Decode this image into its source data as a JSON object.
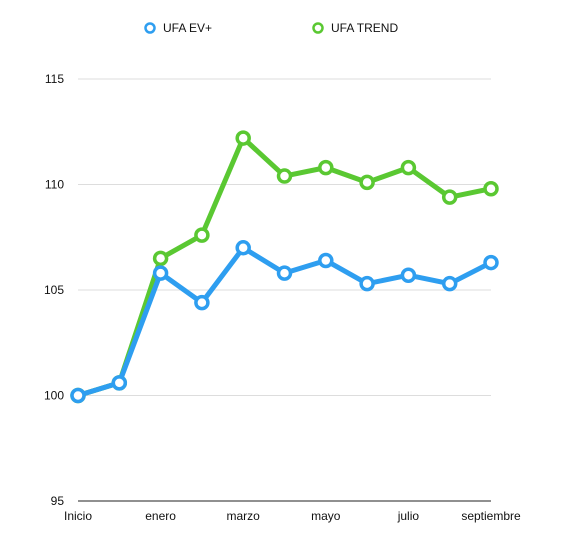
{
  "chart_data": {
    "type": "line",
    "x": [
      "Inicio",
      "",
      "enero",
      "",
      "marzo",
      "",
      "mayo",
      "",
      "julio",
      "",
      "septiembre"
    ],
    "x_tick_labels": [
      "Inicio",
      "enero",
      "marzo",
      "mayo",
      "julio",
      "septiembre"
    ],
    "y_ticks": [
      95,
      100,
      105,
      110,
      115
    ],
    "ylim": [
      95,
      115
    ],
    "grid": true,
    "legend_position": "top-center",
    "series": [
      {
        "name": "UFA EV+",
        "color": "#2e9ef0",
        "values": [
          100.0,
          100.6,
          105.8,
          104.4,
          107.0,
          105.8,
          106.4,
          105.3,
          105.7,
          105.3,
          106.3
        ]
      },
      {
        "name": "UFA TREND",
        "color": "#5ac832",
        "values": [
          100.0,
          100.6,
          106.5,
          107.6,
          112.2,
          110.4,
          110.8,
          110.1,
          110.8,
          109.4,
          109.8
        ]
      }
    ]
  }
}
